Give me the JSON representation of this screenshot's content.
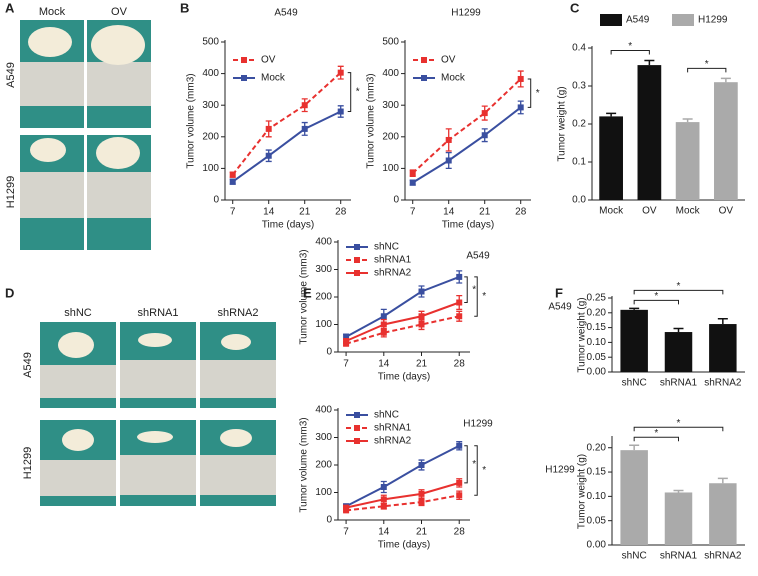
{
  "panels": [
    "A",
    "B",
    "C",
    "D",
    "E",
    "F"
  ],
  "photos": {
    "A": {
      "columns": [
        "Mock",
        "OV"
      ],
      "rows": [
        "A549",
        "H1299"
      ]
    },
    "D": {
      "columns": [
        "shNC",
        "shRNA1",
        "shRNA2"
      ],
      "rows": [
        "A549",
        "H1299"
      ]
    }
  },
  "chart_data": [
    {
      "type": "line",
      "title": "A549",
      "x_label": "Time (days)",
      "y_label": "Tumor volume (mm3)",
      "x": [
        7,
        14,
        21,
        28
      ],
      "xlim": [
        5.5,
        30
      ],
      "xticks": [
        7,
        14,
        21,
        28
      ],
      "ylim": [
        0,
        500
      ],
      "yticks": [
        0,
        100,
        200,
        300,
        400,
        500
      ],
      "series": [
        {
          "name": "OV",
          "color": "#e8312f",
          "line_style": "dashed",
          "values": [
            80,
            225,
            300,
            403
          ],
          "errors": [
            8,
            25,
            20,
            20
          ]
        },
        {
          "name": "Mock",
          "color": "#3a4fa0",
          "line_style": "solid",
          "values": [
            58,
            140,
            225,
            280
          ],
          "errors": [
            8,
            18,
            20,
            18
          ]
        }
      ],
      "annotations": [
        "*"
      ]
    },
    {
      "type": "line",
      "title": "H1299",
      "x_label": "Time (days)",
      "y_label": "Tumor volume (mm3)",
      "x": [
        7,
        14,
        21,
        28
      ],
      "xlim": [
        5.5,
        30
      ],
      "xticks": [
        7,
        14,
        21,
        28
      ],
      "ylim": [
        0,
        500
      ],
      "yticks": [
        0,
        100,
        200,
        300,
        400,
        500
      ],
      "series": [
        {
          "name": "OV",
          "color": "#e8312f",
          "line_style": "dashed",
          "values": [
            85,
            190,
            275,
            383
          ],
          "errors": [
            10,
            35,
            22,
            25
          ]
        },
        {
          "name": "Mock",
          "color": "#3a4fa0",
          "line_style": "solid",
          "values": [
            55,
            125,
            205,
            293
          ],
          "errors": [
            8,
            25,
            20,
            20
          ]
        }
      ],
      "annotations": [
        "*"
      ]
    },
    {
      "type": "bar",
      "y_label": "Tumor weight (g)",
      "categories": [
        "Mock",
        "OV",
        "Mock",
        "OV"
      ],
      "values": [
        0.22,
        0.355,
        0.205,
        0.31
      ],
      "errors": [
        0.008,
        0.012,
        0.008,
        0.01
      ],
      "colors": [
        "#111111",
        "#111111",
        "#aaaaaa",
        "#aaaaaa"
      ],
      "legend": [
        {
          "name": "A549",
          "color": "#111111"
        },
        {
          "name": "H1299",
          "color": "#aaaaaa"
        }
      ],
      "ylim": [
        0,
        0.4
      ],
      "yticks": [
        {
          "value": 0,
          "label": "0.0"
        },
        0.1,
        0.2,
        0.3,
        0.4
      ],
      "annotations": [
        "*",
        "*"
      ]
    },
    {
      "type": "line",
      "title": "A549",
      "x_label": "Time (days)",
      "y_label": "Tumor volume (mm3)",
      "x": [
        7,
        14,
        21,
        28
      ],
      "xlim": [
        5.5,
        30
      ],
      "xticks": [
        7,
        14,
        21,
        28
      ],
      "ylim": [
        0,
        400
      ],
      "yticks": [
        0,
        100,
        200,
        300,
        400
      ],
      "series": [
        {
          "name": "shNC",
          "color": "#3a4fa0",
          "line_style": "solid",
          "values": [
            55,
            130,
            220,
            273
          ],
          "errors": [
            10,
            25,
            20,
            22
          ]
        },
        {
          "name": "shRNA1",
          "color": "#e8312f",
          "line_style": "dashed",
          "values": [
            30,
            70,
            100,
            130
          ],
          "errors": [
            5,
            15,
            18,
            18
          ]
        },
        {
          "name": "shRNA2",
          "color": "#e8312f",
          "line_style": "solid",
          "values": [
            40,
            100,
            130,
            180
          ],
          "errors": [
            8,
            18,
            18,
            25
          ]
        }
      ],
      "annotations": [
        "*",
        "*"
      ]
    },
    {
      "type": "line",
      "title": "H1299",
      "x_label": "Time (days)",
      "y_label": "Tumor volume (mm3)",
      "x": [
        7,
        14,
        21,
        28
      ],
      "xlim": [
        5.5,
        30
      ],
      "xticks": [
        7,
        14,
        21,
        28
      ],
      "ylim": [
        0,
        400
      ],
      "yticks": [
        0,
        100,
        200,
        300,
        400
      ],
      "series": [
        {
          "name": "shNC",
          "color": "#3a4fa0",
          "line_style": "solid",
          "values": [
            50,
            120,
            200,
            270
          ],
          "errors": [
            8,
            20,
            18,
            15
          ]
        },
        {
          "name": "shRNA1",
          "color": "#e8312f",
          "line_style": "dashed",
          "values": [
            35,
            50,
            65,
            90
          ],
          "errors": [
            5,
            10,
            12,
            15
          ]
        },
        {
          "name": "shRNA2",
          "color": "#e8312f",
          "line_style": "solid",
          "values": [
            45,
            75,
            95,
            135
          ],
          "errors": [
            6,
            15,
            15,
            15
          ]
        }
      ],
      "annotations": [
        "*",
        "*"
      ]
    },
    {
      "type": "bar",
      "title": "A549",
      "y_label": "Tumor weight (g)",
      "categories": [
        "shNC",
        "shRNA1",
        "shRNA2"
      ],
      "values": [
        0.21,
        0.135,
        0.162
      ],
      "errors": [
        0.005,
        0.012,
        0.018
      ],
      "colors": [
        "#111111",
        "#111111",
        "#111111"
      ],
      "ylim": [
        0,
        0.25
      ],
      "yticks": [
        {
          "value": 0,
          "label": "0.00"
        },
        {
          "value": 0.05,
          "label": "0.05"
        },
        {
          "value": 0.1,
          "label": "0.10"
        },
        {
          "value": 0.15,
          "label": "0.15"
        },
        {
          "value": 0.2,
          "label": "0.20"
        },
        {
          "value": 0.25,
          "label": "0.25"
        }
      ],
      "annotations": [
        "*",
        "*"
      ]
    },
    {
      "type": "bar",
      "title": "H1299",
      "y_label": "Tumor weight (g)",
      "categories": [
        "shNC",
        "shRNA1",
        "shRNA2"
      ],
      "values": [
        0.195,
        0.108,
        0.127
      ],
      "errors": [
        0.01,
        0.004,
        0.01
      ],
      "colors": [
        "#aaaaaa",
        "#aaaaaa",
        "#aaaaaa"
      ],
      "ylim": [
        0,
        0.22
      ],
      "yticks": [
        {
          "value": 0,
          "label": "0.00"
        },
        {
          "value": 0.05,
          "label": "0.05"
        },
        {
          "value": 0.1,
          "label": "0.10"
        },
        {
          "value": 0.15,
          "label": "0.15"
        },
        {
          "value": 0.2,
          "label": "0.20"
        }
      ],
      "annotations": [
        "*",
        "*"
      ]
    }
  ]
}
